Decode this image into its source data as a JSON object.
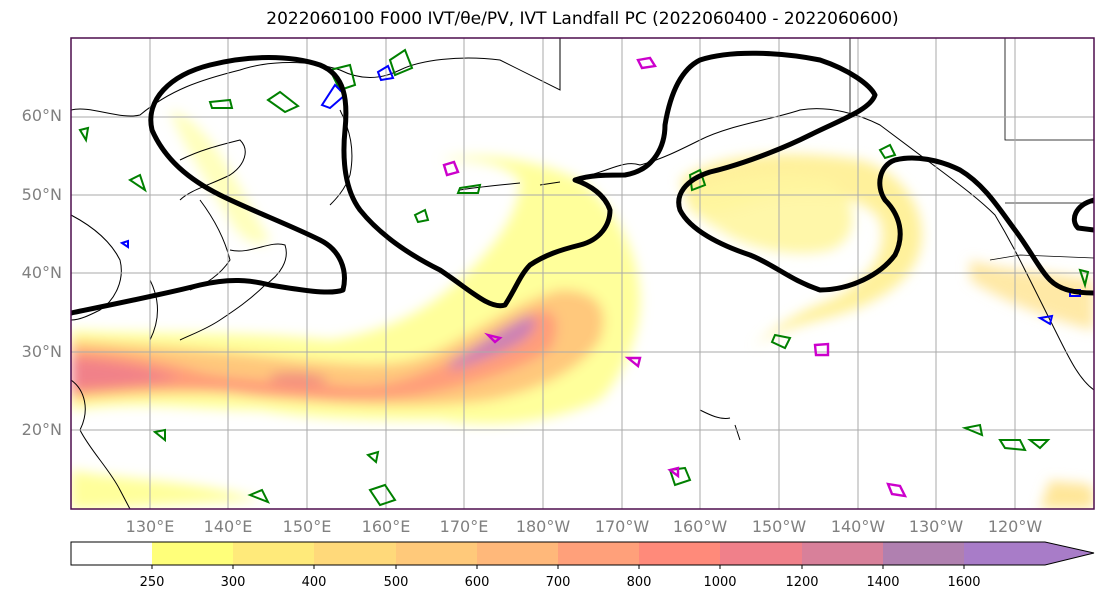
{
  "title": "2022060100 F000 IVT/θe/PV, IVT Landfall PC (2022060400 - 2022060600)",
  "lat_labels": [
    "60°N",
    "50°N",
    "40°N",
    "30°N",
    "20°N"
  ],
  "lon_labels": [
    "130°E",
    "140°E",
    "150°E",
    "160°E",
    "170°E",
    "180°W",
    "170°W",
    "160°W",
    "150°W",
    "140°W",
    "130°W",
    "120°W"
  ],
  "colorbar": {
    "ticks": [
      "250",
      "300",
      "400",
      "500",
      "600",
      "700",
      "800",
      "1000",
      "1200",
      "1400",
      "1600"
    ],
    "colors": [
      "#ffffff",
      "#ffff7a",
      "#ffea7a",
      "#ffd97a",
      "#ffc97a",
      "#ffb87a",
      "#ffa07a",
      "#ff8a7a",
      "#f0808a",
      "#d8809a",
      "#b080b0",
      "#a87cc8"
    ]
  },
  "colors": {
    "pc_contour": "#000000",
    "theta_e": "#008000",
    "pv_low": "#0000ff",
    "pv_high": "#cc00cc",
    "grid": "#aaaaaa"
  }
}
